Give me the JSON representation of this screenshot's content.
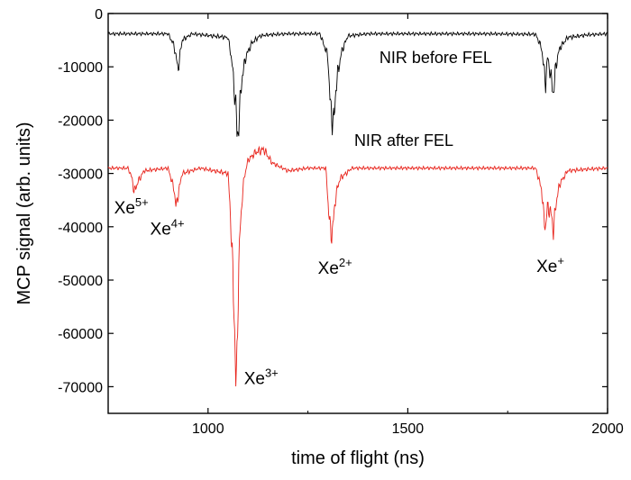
{
  "chart_data": {
    "type": "line",
    "xlabel": "time of flight (ns)",
    "ylabel": "MCP signal (arb. units)",
    "xlim": [
      750,
      2000
    ],
    "ylim": [
      -75000,
      0
    ],
    "x_ticks": [
      1000,
      1500,
      2000
    ],
    "x_tick_labels": [
      "1000",
      "1500",
      "2000"
    ],
    "y_ticks": [
      0,
      -10000,
      -20000,
      -30000,
      -40000,
      -50000,
      -60000,
      -70000
    ],
    "y_tick_labels": [
      "0",
      "-10000",
      "-20000",
      "-30000",
      "-40000",
      "-50000",
      "-60000",
      "-70000"
    ],
    "grid": false,
    "series": [
      {
        "name": "NIR before FEL",
        "color": "#000000",
        "baseline": -3800,
        "x": [
          750,
          900,
          915,
          925,
          935,
          960,
          1050,
          1060,
          1065,
          1070,
          1073,
          1078,
          1085,
          1095,
          1110,
          1130,
          1150,
          1200,
          1280,
          1300,
          1305,
          1310,
          1315,
          1320,
          1325,
          1335,
          1350,
          1400,
          1500,
          1600,
          1700,
          1820,
          1835,
          1840,
          1845,
          1850,
          1860,
          1865,
          1870,
          1880,
          1900,
          1950,
          2000
        ],
        "y": [
          -3800,
          -3800,
          -6000,
          -10500,
          -5000,
          -3800,
          -4500,
          -9000,
          -14000,
          -17000,
          -24500,
          -19000,
          -12000,
          -8000,
          -5500,
          -4200,
          -4000,
          -3800,
          -3800,
          -8000,
          -16000,
          -19500,
          -20500,
          -14000,
          -11000,
          -7000,
          -4200,
          -3800,
          -3800,
          -3800,
          -3800,
          -3900,
          -6500,
          -10000,
          -13000,
          -8000,
          -13000,
          -15000,
          -10000,
          -6500,
          -4500,
          -4000,
          -3800
        ]
      },
      {
        "name": "NIR after FEL",
        "color": "#e8231b",
        "baseline": -29000,
        "x": [
          750,
          800,
          810,
          815,
          825,
          840,
          900,
          915,
          920,
          925,
          935,
          980,
          1050,
          1055,
          1060,
          1065,
          1068,
          1070,
          1073,
          1076,
          1080,
          1085,
          1090,
          1100,
          1120,
          1140,
          1160,
          1200,
          1250,
          1295,
          1300,
          1305,
          1310,
          1315,
          1320,
          1330,
          1360,
          1400,
          1500,
          1600,
          1700,
          1820,
          1835,
          1840,
          1845,
          1850,
          1860,
          1865,
          1870,
          1880,
          1900,
          1950,
          2000
        ],
        "y": [
          -29000,
          -29000,
          -31000,
          -33500,
          -31500,
          -29500,
          -29000,
          -33000,
          -36500,
          -34000,
          -30000,
          -29000,
          -30000,
          -36000,
          -45000,
          -55000,
          -64000,
          -71500,
          -62000,
          -50000,
          -41000,
          -35000,
          -31000,
          -27500,
          -26000,
          -25500,
          -28000,
          -29500,
          -29000,
          -29000,
          -35000,
          -40000,
          -41500,
          -38000,
          -34000,
          -31000,
          -29000,
          -29000,
          -29000,
          -29000,
          -29000,
          -29000,
          -33000,
          -38000,
          -40000,
          -36000,
          -38000,
          -41000,
          -36000,
          -32000,
          -29500,
          -29200,
          -29000
        ]
      }
    ],
    "annotations": [
      {
        "label": "NIR before FEL",
        "x": 1570,
        "y": -9300,
        "anchor": "middle"
      },
      {
        "label": "NIR after FEL",
        "x": 1490,
        "y": -24800,
        "anchor": "middle"
      }
    ],
    "peak_labels": [
      {
        "base": "Xe",
        "sup": "5+",
        "x": 765,
        "y": -37500
      },
      {
        "base": "Xe",
        "sup": "4+",
        "x": 855,
        "y": -41500
      },
      {
        "base": "Xe",
        "sup": "3+",
        "x": 1090,
        "y": -69500
      },
      {
        "base": "Xe",
        "sup": "2+",
        "x": 1275,
        "y": -48800
      },
      {
        "base": "Xe",
        "sup": "+",
        "x": 1822,
        "y": -48500
      }
    ]
  }
}
